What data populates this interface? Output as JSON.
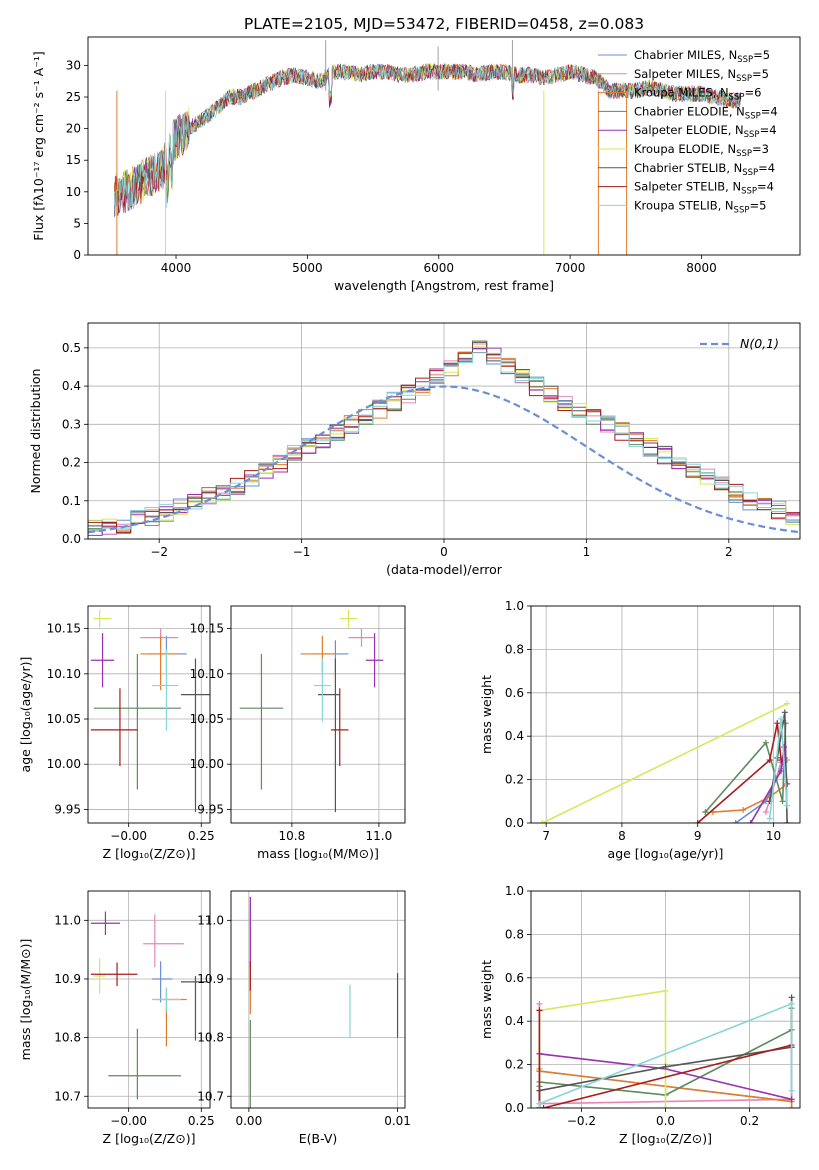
{
  "title": "PLATE=2105, MJD=53472, FIBERID=0458, z=0.083",
  "colors": {
    "c1": "#6b8fd6",
    "c2": "#e586b6",
    "c3": "#e37c2a",
    "c4": "#5f8a5f",
    "c5": "#9b30b0",
    "c6": "#d8e85a",
    "c7": "#555555",
    "c8": "#a81c1c",
    "c9": "#86d6d6"
  },
  "chart_data": [
    {
      "id": "spectrum",
      "type": "line",
      "xlabel": "wavelength [Angstrom, rest frame]",
      "ylabel": "Flux [fλ10⁻¹⁷ erg cm⁻² s⁻¹ A⁻¹]",
      "xlim": [
        3330,
        8750
      ],
      "ylim": [
        0,
        34.5
      ],
      "xticks": [
        4000,
        5000,
        6000,
        7000,
        8000
      ],
      "yticks": [
        0,
        5,
        10,
        15,
        20,
        25,
        30
      ],
      "grid": false,
      "legend_position": "top-right",
      "envelope": {
        "x": [
          3530,
          3600,
          3700,
          3800,
          3900,
          3950,
          4000,
          4100,
          4200,
          4300,
          4400,
          4500,
          4600,
          4700,
          4800,
          4900,
          5000,
          5100,
          5200,
          5300,
          5400,
          5500,
          5600,
          5700,
          5800,
          5900,
          6000,
          6100,
          6200,
          6300,
          6400,
          6500,
          6600,
          6700,
          6800,
          6900,
          7000,
          7100,
          7200,
          7300,
          7400,
          7500,
          7600,
          7700,
          7800,
          7900,
          8000,
          8100,
          8200,
          8300
        ],
        "y": [
          9.5,
          10,
          11,
          12.5,
          13.5,
          17,
          18.5,
          20,
          21.5,
          23,
          25,
          25,
          26,
          27,
          28,
          28.5,
          28,
          27.5,
          29,
          29,
          28.5,
          29,
          29,
          28.5,
          28.5,
          29,
          29,
          29,
          29,
          28.5,
          29,
          29,
          28.5,
          28.5,
          28,
          28.5,
          29,
          28.5,
          28,
          26,
          26,
          26,
          26.5,
          26,
          25.5,
          25.5,
          25.5,
          25,
          24.5,
          24.5
        ]
      },
      "series": [
        {
          "name": "Chabrier MILES, N_SSP=5",
          "color": "#6b8fd6"
        },
        {
          "name": "Salpeter MILES, N_SSP=5",
          "color": "#e586b6"
        },
        {
          "name": "Kroupa MILES, N_SSP=6",
          "color": "#e37c2a"
        },
        {
          "name": "Chabrier ELODIE, N_SSP=4",
          "color": "#5f8a5f"
        },
        {
          "name": "Salpeter ELODIE, N_SSP=4",
          "color": "#9b30b0"
        },
        {
          "name": "Kroupa ELODIE, N_SSP=3",
          "color": "#d8e85a"
        },
        {
          "name": "Chabrier STELIB, N_SSP=4",
          "color": "#555555"
        },
        {
          "name": "Salpeter STELIB, N_SSP=4",
          "color": "#a81c1c"
        },
        {
          "name": "Kroupa STELIB, N_SSP=5",
          "color": "#86d6d6"
        }
      ]
    },
    {
      "id": "residuals",
      "type": "line",
      "xlabel": "(data-model)/error",
      "ylabel": "Normed distribution",
      "xlim": [
        -2.5,
        2.5
      ],
      "ylim": [
        0,
        0.565
      ],
      "xticks": [
        -2,
        -1,
        0,
        1,
        2
      ],
      "yticks": [
        0.0,
        0.1,
        0.2,
        0.3,
        0.4,
        0.5
      ],
      "grid": true,
      "legend_position": "top-right",
      "legend": "N(0,1)",
      "bin_width": 0.1,
      "histogram_centers_y": [
        0.02,
        0.025,
        0.03,
        0.035,
        0.04,
        0.05,
        0.06,
        0.07,
        0.08,
        0.095,
        0.11,
        0.125,
        0.14,
        0.16,
        0.18,
        0.2,
        0.22,
        0.24,
        0.26,
        0.28,
        0.3,
        0.32,
        0.34,
        0.36,
        0.38,
        0.4,
        0.43,
        0.45,
        0.48,
        0.5,
        0.48,
        0.45,
        0.42,
        0.4,
        0.38,
        0.36,
        0.34,
        0.32,
        0.3,
        0.28,
        0.26,
        0.24,
        0.22,
        0.2,
        0.18,
        0.16,
        0.14,
        0.12,
        0.1,
        0.085,
        0.075,
        0.06,
        0.05,
        0.045,
        0.04
      ]
    },
    {
      "id": "age-vs-z",
      "type": "scatter",
      "xlabel": "Z [log₁₀(Z/Z⊙)]",
      "ylabel": "age  [log₁₀(age/yr)]",
      "xlim": [
        -0.14,
        0.28
      ],
      "ylim": [
        9.935,
        10.175
      ],
      "xticks": [
        -0.0,
        0.25
      ],
      "xtick_labels": [
        "−0.00",
        "0.25"
      ],
      "extra_xticks": [
        0.0
      ],
      "yticks": [
        9.95,
        10.0,
        10.05,
        10.1,
        10.15
      ],
      "grid": true,
      "points": [
        {
          "x": 0.13,
          "y": 10.122,
          "dx": [
            0.06,
            0.07
          ],
          "dy": [
            0.02,
            0.02
          ],
          "color": "#6b8fd6"
        },
        {
          "x": 0.11,
          "y": 10.14,
          "dx": [
            0.07,
            0.06
          ],
          "dy": [
            0.01,
            0.01
          ],
          "color": "#e586b6"
        },
        {
          "x": 0.11,
          "y": 10.122,
          "dx": [
            0.07,
            0.06
          ],
          "dy": [
            0.04,
            0.02
          ],
          "color": "#e37c2a"
        },
        {
          "x": 0.03,
          "y": 10.062,
          "dx": [
            0.15,
            0.15
          ],
          "dy": [
            0.09,
            0.06
          ],
          "color": "#5f8a5f"
        },
        {
          "x": -0.09,
          "y": 10.115,
          "dx": [
            0.04,
            0.04
          ],
          "dy": [
            0.03,
            0.03
          ],
          "color": "#9b30b0"
        },
        {
          "x": -0.1,
          "y": 10.161,
          "dx": [
            0.02,
            0.04
          ],
          "dy": [
            0.01,
            0.01
          ],
          "color": "#d8e85a"
        },
        {
          "x": 0.23,
          "y": 10.077,
          "dx": [
            0.05,
            0.05
          ],
          "dy": [
            0.13,
            0.04
          ],
          "color": "#555555"
        },
        {
          "x": -0.03,
          "y": 10.038,
          "dx": [
            0.1,
            0.06
          ],
          "dy": [
            0.04,
            0.046
          ],
          "color": "#a81c1c"
        },
        {
          "x": 0.13,
          "y": 10.087,
          "dx": [
            0.05,
            0.04
          ],
          "dy": [
            0.05,
            0.04
          ],
          "color": "#86d6d6"
        }
      ]
    },
    {
      "id": "age-vs-mass",
      "type": "scatter",
      "xlabel": "mass [log₁₀(M/M⊙)]",
      "ylabel": "",
      "xlim": [
        10.66,
        11.06
      ],
      "ylim": [
        9.935,
        10.175
      ],
      "xticks": [
        10.8,
        11.0
      ],
      "yticks": [
        9.95,
        10.0,
        10.05,
        10.1,
        10.15
      ],
      "grid": true,
      "points": [
        {
          "x": 10.9,
          "y": 10.122,
          "dx": [
            0.05,
            0.03
          ],
          "dy": [
            0.02,
            0.015
          ],
          "color": "#6b8fd6"
        },
        {
          "x": 10.96,
          "y": 10.14,
          "dx": [
            0.03,
            0.03
          ],
          "dy": [
            0.01,
            0.01
          ],
          "color": "#e586b6"
        },
        {
          "x": 10.87,
          "y": 10.122,
          "dx": [
            0.05,
            0.03
          ],
          "dy": [
            0.02,
            0.02
          ],
          "color": "#e37c2a"
        },
        {
          "x": 10.73,
          "y": 10.062,
          "dx": [
            0.05,
            0.05
          ],
          "dy": [
            0.09,
            0.06
          ],
          "color": "#5f8a5f"
        },
        {
          "x": 10.99,
          "y": 10.115,
          "dx": [
            0.02,
            0.02
          ],
          "dy": [
            0.03,
            0.03
          ],
          "color": "#9b30b0"
        },
        {
          "x": 10.93,
          "y": 10.161,
          "dx": [
            0.02,
            0.02
          ],
          "dy": [
            0.01,
            0.01
          ],
          "color": "#d8e85a"
        },
        {
          "x": 10.9,
          "y": 10.077,
          "dx": [
            0.04,
            0.01
          ],
          "dy": [
            0.13,
            0.04
          ],
          "color": "#555555"
        },
        {
          "x": 10.91,
          "y": 10.038,
          "dx": [
            0.02,
            0.02
          ],
          "dy": [
            0.04,
            0.046
          ],
          "color": "#a81c1c"
        },
        {
          "x": 10.87,
          "y": 10.087,
          "dx": [
            0.02,
            0.02
          ],
          "dy": [
            0.04,
            0.03
          ],
          "color": "#86d6d6"
        }
      ]
    },
    {
      "id": "massweight-vs-age",
      "type": "line",
      "xlabel": "age  [log₁₀(age/yr)]",
      "ylabel": "mass weight",
      "xlim": [
        6.8,
        10.35
      ],
      "ylim": [
        0,
        1.0
      ],
      "xticks": [
        7,
        8,
        9,
        10
      ],
      "yticks": [
        0.0,
        0.2,
        0.4,
        0.6,
        0.8,
        1.0
      ],
      "grid": true,
      "series": [
        {
          "color": "#6b8fd6",
          "x": [
            9.5,
            9.9,
            10.1,
            10.15
          ],
          "y": [
            0.0,
            0.1,
            0.25,
            0.3
          ]
        },
        {
          "color": "#e586b6",
          "x": [
            9.9,
            10.1,
            10.18
          ],
          "y": [
            0.05,
            0.28,
            0.29
          ]
        },
        {
          "color": "#e37c2a",
          "x": [
            9.2,
            9.6,
            9.95,
            10.18
          ],
          "y": [
            0.05,
            0.06,
            0.12,
            0.18
          ]
        },
        {
          "color": "#5f8a5f",
          "x": [
            9.1,
            9.9,
            10.12,
            10.16
          ],
          "y": [
            0.05,
            0.37,
            0.1,
            0.46
          ]
        },
        {
          "color": "#9b30b0",
          "x": [
            9.7,
            10.1,
            10.14,
            10.18
          ],
          "y": [
            0.0,
            0.24,
            0.35,
            0.18
          ]
        },
        {
          "color": "#d8e85a",
          "x": [
            6.95,
            10.18
          ],
          "y": [
            0.0,
            0.55
          ]
        },
        {
          "color": "#555555",
          "x": [
            9.95,
            10.05,
            10.15,
            10.18
          ],
          "y": [
            0.1,
            0.3,
            0.51,
            0.0
          ]
        },
        {
          "color": "#a81c1c",
          "x": [
            9.0,
            9.95,
            10.05,
            10.1
          ],
          "y": [
            0.0,
            0.29,
            0.46,
            0.29
          ]
        },
        {
          "color": "#86d6d6",
          "x": [
            9.95,
            10.1,
            10.18
          ],
          "y": [
            0.02,
            0.48,
            0.08
          ]
        }
      ]
    },
    {
      "id": "mass-vs-z",
      "type": "scatter",
      "xlabel": "Z [log₁₀(Z/Z⊙)]",
      "ylabel": "mass [log₁₀(M/M⊙)]",
      "xlim": [
        -0.14,
        0.28
      ],
      "ylim": [
        10.68,
        11.05
      ],
      "xticks": [
        -0.0,
        0.25
      ],
      "xtick_labels": [
        "−0.00",
        "0.25"
      ],
      "yticks": [
        10.7,
        10.8,
        10.9,
        11.0
      ],
      "grid": true,
      "points": [
        {
          "x": 0.11,
          "y": 10.9,
          "dx": [
            0.03,
            0.04
          ],
          "dy": [
            0.04,
            0.03
          ],
          "color": "#6b8fd6"
        },
        {
          "x": 0.09,
          "y": 10.96,
          "dx": [
            0.04,
            0.1
          ],
          "dy": [
            0.04,
            0.05
          ],
          "color": "#e586b6"
        },
        {
          "x": 0.13,
          "y": 10.865,
          "dx": [
            0.04,
            0.07
          ],
          "dy": [
            0.08,
            0.02
          ],
          "color": "#e37c2a"
        },
        {
          "x": 0.03,
          "y": 10.735,
          "dx": [
            0.1,
            0.15
          ],
          "dy": [
            0.04,
            0.08
          ],
          "color": "#5f8a5f"
        },
        {
          "x": -0.08,
          "y": 10.995,
          "dx": [
            0.05,
            0.05
          ],
          "dy": [
            0.02,
            0.02
          ],
          "color": "#9b30b0"
        },
        {
          "x": -0.1,
          "y": 10.905,
          "dx": [
            0.02,
            0.02
          ],
          "dy": [
            0.03,
            0.03
          ],
          "color": "#d8e85a"
        },
        {
          "x": 0.23,
          "y": 10.895,
          "dx": [
            0.05,
            0.04
          ],
          "dy": [
            0.1,
            0.01
          ],
          "color": "#555555"
        },
        {
          "x": -0.04,
          "y": 10.908,
          "dx": [
            0.09,
            0.07
          ],
          "dy": [
            0.02,
            0.02
          ],
          "color": "#a81c1c"
        },
        {
          "x": 0.13,
          "y": 10.865,
          "dx": [
            0.05,
            0.05
          ],
          "dy": [
            0.02,
            0.02
          ],
          "color": "#86d6d6"
        }
      ]
    },
    {
      "id": "mass-vs-ebv",
      "type": "scatter",
      "xlabel": "E(B-V)",
      "ylabel": "",
      "xlim": [
        -0.0012,
        0.0105
      ],
      "ylim": [
        10.68,
        11.05
      ],
      "xticks": [
        0.0,
        0.01
      ],
      "xtick_labels": [
        "0.00",
        "0.01"
      ],
      "yticks": [
        10.7,
        10.8,
        10.9,
        11.0
      ],
      "grid": true,
      "points": [
        {
          "x": 0.0001,
          "y": 10.98,
          "dy": [
            0.06,
            0.06
          ],
          "color": "#e586b6"
        },
        {
          "x": 0.0001,
          "y": 10.96,
          "dy": [
            0.04,
            0.08
          ],
          "color": "#9b30b0"
        },
        {
          "x": 0.0001,
          "y": 10.9,
          "dy": [
            0.06,
            0.03
          ],
          "color": "#e37c2a"
        },
        {
          "x": 0.0001,
          "y": 10.78,
          "dy": [
            0.1,
            0.05
          ],
          "color": "#5f8a5f"
        },
        {
          "x": 0.0001,
          "y": 10.9,
          "dy": [
            0.02,
            0.03
          ],
          "color": "#a81c1c"
        },
        {
          "x": 0.0068,
          "y": 10.84,
          "dy": [
            0.04,
            0.05
          ],
          "color": "#86d6d6"
        },
        {
          "x": 0.01,
          "y": 10.86,
          "dy": [
            0.06,
            0.05
          ],
          "color": "#555555"
        }
      ]
    },
    {
      "id": "massweight-vs-z",
      "type": "line",
      "xlabel": "Z [log₁₀(Z/Z⊙)]",
      "ylabel": "mass weight",
      "xlim": [
        -0.32,
        0.32
      ],
      "ylim": [
        0,
        1.0
      ],
      "xticks": [
        -0.2,
        0.0,
        0.2
      ],
      "yticks": [
        0.0,
        0.2,
        0.4,
        0.6,
        0.8,
        1.0
      ],
      "grid": true,
      "series": [
        {
          "color": "#6b8fd6",
          "x": [
            -0.3,
            -0.3,
            0.3,
            0.3
          ],
          "y": [
            0.0,
            0.17,
            0.03,
            0.28
          ]
        },
        {
          "color": "#e586b6",
          "x": [
            -0.3,
            -0.3,
            0.3,
            0.3
          ],
          "y": [
            0.48,
            0.02,
            0.04,
            0.28
          ]
        },
        {
          "color": "#e37c2a",
          "x": [
            -0.3,
            -0.3,
            0.3,
            0.3
          ],
          "y": [
            0.18,
            0.17,
            0.03,
            0.0
          ]
        },
        {
          "color": "#5f8a5f",
          "x": [
            -0.3,
            -0.3,
            0.0,
            0.3,
            0.3
          ],
          "y": [
            0.1,
            0.12,
            0.06,
            0.36,
            0.46
          ]
        },
        {
          "color": "#9b30b0",
          "x": [
            -0.3,
            -0.3,
            0.0,
            0.3
          ],
          "y": [
            0.0,
            0.25,
            0.18,
            0.04
          ]
        },
        {
          "color": "#d8e85a",
          "x": [
            -0.3,
            -0.3,
            0.0,
            0.0
          ],
          "y": [
            0.0,
            0.45,
            0.54,
            0.0
          ]
        },
        {
          "color": "#555555",
          "x": [
            -0.3,
            -0.3,
            0.0,
            0.3,
            0.3
          ],
          "y": [
            0.0,
            0.08,
            0.19,
            0.28,
            0.51
          ]
        },
        {
          "color": "#a81c1c",
          "x": [
            -0.3,
            -0.3,
            -0.29,
            0.3
          ],
          "y": [
            0.45,
            0.0,
            0.0,
            0.29
          ]
        },
        {
          "color": "#86d6d6",
          "x": [
            -0.3,
            -0.3,
            0.3,
            0.3
          ],
          "y": [
            0.0,
            0.02,
            0.48,
            0.08
          ]
        }
      ]
    }
  ]
}
